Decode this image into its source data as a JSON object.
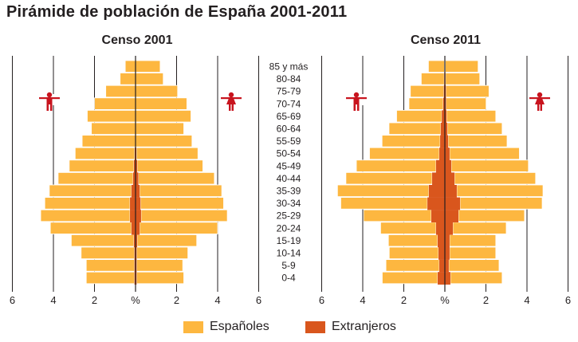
{
  "title": "Pirámide de población de España 2001-2011",
  "colors": {
    "spanish": "#FDB740",
    "foreign": "#D9561D",
    "icon": "#C8141E",
    "grid": "#231f20"
  },
  "legend": [
    {
      "label": "Españoles",
      "key": "spanish"
    },
    {
      "label": "Extranjeros",
      "key": "foreign"
    }
  ],
  "icons": {
    "male": "male-figure-icon",
    "female": "female-figure-icon"
  },
  "chart_data": [
    {
      "type": "bar",
      "subtype": "population-pyramid",
      "title": "Censo 2001",
      "unit": "%",
      "xlabel": "%",
      "x_ticks": [
        "6",
        "4",
        "2",
        "%",
        "2",
        "4",
        "6"
      ],
      "xlim": [
        -6,
        6
      ],
      "grid": true,
      "categories": [
        "85 y más",
        "80-84",
        "75-79",
        "70-74",
        "65-69",
        "60-64",
        "55-59",
        "50-54",
        "45-49",
        "40-44",
        "35-39",
        "30-34",
        "25-29",
        "20-24",
        "15-19",
        "10-14",
        "5-9",
        "0-4"
      ],
      "series": [
        {
          "name": "Españoles - Hombres",
          "side": "left",
          "key": "spanish",
          "values": [
            0.5,
            0.75,
            1.45,
            2.0,
            2.35,
            2.15,
            2.6,
            2.9,
            3.15,
            3.65,
            4.0,
            4.15,
            4.35,
            3.95,
            3.05,
            2.6,
            2.35,
            2.35
          ]
        },
        {
          "name": "Extranjeros - Hombres",
          "side": "left",
          "key": "foreign",
          "values": [
            0,
            0,
            0,
            0,
            0,
            0,
            0,
            0.04,
            0.08,
            0.12,
            0.2,
            0.27,
            0.27,
            0.2,
            0.08,
            0.05,
            0.05,
            0.05
          ]
        },
        {
          "name": "Españoles - Mujeres",
          "side": "right",
          "key": "spanish",
          "values": [
            1.2,
            1.35,
            2.05,
            2.5,
            2.7,
            2.35,
            2.75,
            3.0,
            3.2,
            3.7,
            4.0,
            4.05,
            4.2,
            3.8,
            2.9,
            2.5,
            2.25,
            2.3
          ]
        },
        {
          "name": "Extranjeros - Mujeres",
          "side": "right",
          "key": "foreign",
          "values": [
            0,
            0,
            0,
            0,
            0,
            0,
            0,
            0.04,
            0.08,
            0.14,
            0.2,
            0.24,
            0.27,
            0.2,
            0.08,
            0.05,
            0.05,
            0.05
          ]
        }
      ]
    },
    {
      "type": "bar",
      "subtype": "population-pyramid",
      "title": "Censo 2011",
      "unit": "%",
      "xlabel": "%",
      "x_ticks": [
        "6",
        "4",
        "2",
        "%",
        "2",
        "4",
        "6"
      ],
      "xlim": [
        -6,
        6
      ],
      "grid": true,
      "categories": [
        "85 y más",
        "80-84",
        "75-79",
        "70-74",
        "65-69",
        "60-64",
        "55-59",
        "50-54",
        "45-49",
        "40-44",
        "35-39",
        "30-34",
        "25-29",
        "20-24",
        "15-19",
        "10-14",
        "5-9",
        "0-4"
      ],
      "series": [
        {
          "name": "Españoles - Hombres",
          "side": "left",
          "key": "spanish",
          "values": [
            0.78,
            1.12,
            1.63,
            1.67,
            2.2,
            2.52,
            2.83,
            3.4,
            3.88,
            4.2,
            4.45,
            4.22,
            3.3,
            2.7,
            2.4,
            2.4,
            2.6,
            2.7
          ]
        },
        {
          "name": "Extranjeros - Hombres",
          "side": "left",
          "key": "foreign",
          "values": [
            0.02,
            0.03,
            0.05,
            0.08,
            0.15,
            0.2,
            0.23,
            0.27,
            0.43,
            0.62,
            0.78,
            0.85,
            0.66,
            0.43,
            0.35,
            0.31,
            0.27,
            0.35
          ]
        },
        {
          "name": "Españoles - Mujeres",
          "side": "right",
          "key": "spanish",
          "values": [
            1.6,
            1.67,
            2.1,
            1.95,
            2.4,
            2.67,
            2.87,
            3.4,
            3.76,
            3.95,
            4.2,
            4.0,
            3.22,
            2.6,
            2.25,
            2.25,
            2.45,
            2.52
          ]
        },
        {
          "name": "Extranjeros - Mujeres",
          "side": "right",
          "key": "foreign",
          "values": [
            0.02,
            0.03,
            0.05,
            0.06,
            0.08,
            0.12,
            0.16,
            0.23,
            0.31,
            0.47,
            0.58,
            0.74,
            0.66,
            0.39,
            0.23,
            0.23,
            0.19,
            0.27
          ]
        }
      ]
    }
  ]
}
